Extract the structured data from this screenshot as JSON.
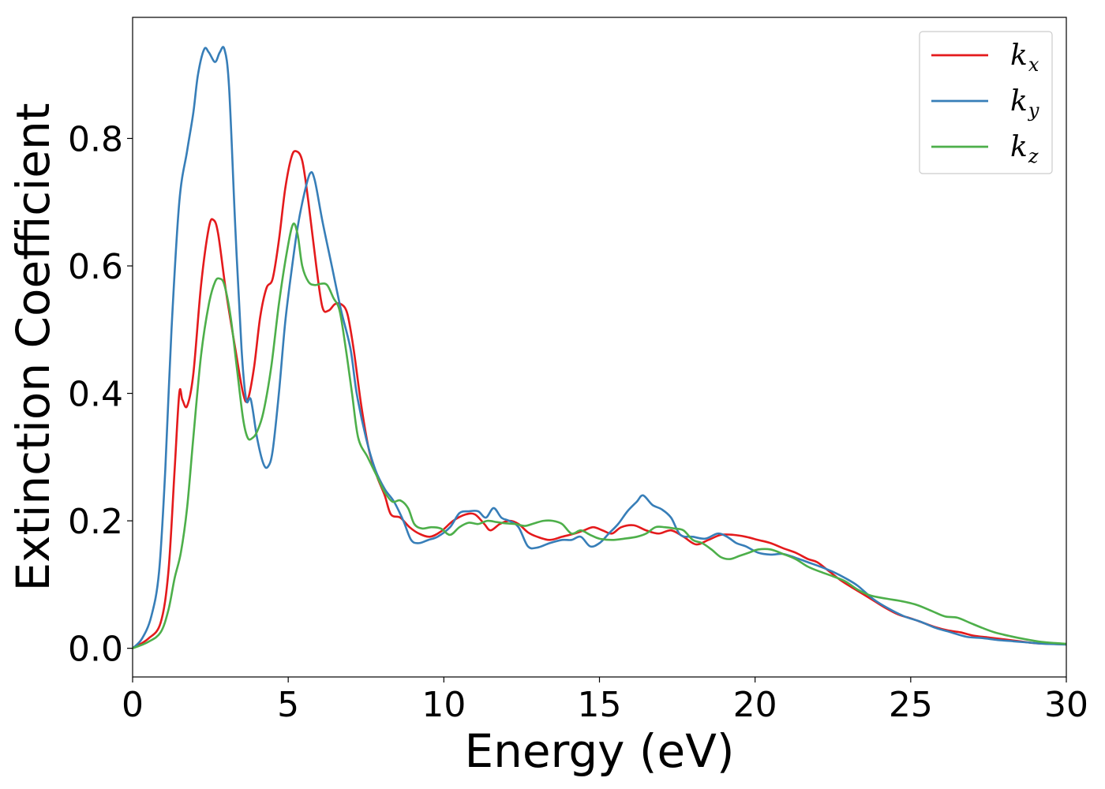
{
  "chart_data": {
    "type": "line",
    "title": "",
    "xlabel": "Energy (eV)",
    "ylabel": "Extinction Coefficient",
    "xlim": [
      0,
      30
    ],
    "ylim": [
      -0.045,
      0.99
    ],
    "xticks": [
      0,
      5,
      10,
      15,
      20,
      25,
      30
    ],
    "xtick_labels": [
      "0",
      "5",
      "10",
      "15",
      "20",
      "25",
      "30"
    ],
    "yticks": [
      0.0,
      0.2,
      0.4,
      0.6,
      0.8
    ],
    "ytick_labels": [
      "0.0",
      "0.2",
      "0.4",
      "0.6",
      "0.8"
    ],
    "grid": false,
    "legend_position": "top-right",
    "series": [
      {
        "name": "k",
        "subscript": "x",
        "color": "#e41a1c",
        "points": [
          [
            0,
            0.0
          ],
          [
            0.5,
            0.015
          ],
          [
            0.9,
            0.04
          ],
          [
            1.15,
            0.12
          ],
          [
            1.35,
            0.28
          ],
          [
            1.5,
            0.4
          ],
          [
            1.6,
            0.39
          ],
          [
            1.75,
            0.38
          ],
          [
            1.95,
            0.43
          ],
          [
            2.2,
            0.57
          ],
          [
            2.45,
            0.66
          ],
          [
            2.6,
            0.672
          ],
          [
            2.75,
            0.65
          ],
          [
            3.0,
            0.56
          ],
          [
            3.3,
            0.47
          ],
          [
            3.55,
            0.4
          ],
          [
            3.7,
            0.39
          ],
          [
            3.9,
            0.44
          ],
          [
            4.1,
            0.52
          ],
          [
            4.3,
            0.565
          ],
          [
            4.5,
            0.58
          ],
          [
            4.7,
            0.64
          ],
          [
            4.9,
            0.72
          ],
          [
            5.1,
            0.77
          ],
          [
            5.25,
            0.78
          ],
          [
            5.45,
            0.765
          ],
          [
            5.65,
            0.7
          ],
          [
            5.9,
            0.6
          ],
          [
            6.1,
            0.535
          ],
          [
            6.3,
            0.53
          ],
          [
            6.5,
            0.54
          ],
          [
            6.7,
            0.54
          ],
          [
            6.9,
            0.525
          ],
          [
            7.1,
            0.47
          ],
          [
            7.35,
            0.38
          ],
          [
            7.6,
            0.31
          ],
          [
            7.85,
            0.27
          ],
          [
            8.1,
            0.24
          ],
          [
            8.3,
            0.21
          ],
          [
            8.6,
            0.205
          ],
          [
            8.9,
            0.19
          ],
          [
            9.2,
            0.18
          ],
          [
            9.55,
            0.175
          ],
          [
            9.9,
            0.183
          ],
          [
            10.3,
            0.2
          ],
          [
            10.7,
            0.21
          ],
          [
            11.0,
            0.21
          ],
          [
            11.3,
            0.195
          ],
          [
            11.5,
            0.185
          ],
          [
            11.8,
            0.195
          ],
          [
            12.1,
            0.2
          ],
          [
            12.4,
            0.195
          ],
          [
            12.7,
            0.182
          ],
          [
            13.0,
            0.175
          ],
          [
            13.4,
            0.17
          ],
          [
            13.8,
            0.175
          ],
          [
            14.2,
            0.18
          ],
          [
            14.5,
            0.185
          ],
          [
            14.8,
            0.19
          ],
          [
            15.1,
            0.185
          ],
          [
            15.4,
            0.18
          ],
          [
            15.7,
            0.19
          ],
          [
            16.1,
            0.193
          ],
          [
            16.5,
            0.185
          ],
          [
            16.9,
            0.18
          ],
          [
            17.3,
            0.185
          ],
          [
            17.7,
            0.175
          ],
          [
            18.1,
            0.163
          ],
          [
            18.5,
            0.17
          ],
          [
            18.9,
            0.178
          ],
          [
            19.3,
            0.178
          ],
          [
            19.7,
            0.175
          ],
          [
            20.1,
            0.17
          ],
          [
            20.5,
            0.165
          ],
          [
            20.9,
            0.157
          ],
          [
            21.3,
            0.15
          ],
          [
            21.7,
            0.14
          ],
          [
            22.0,
            0.135
          ],
          [
            22.4,
            0.12
          ],
          [
            22.8,
            0.105
          ],
          [
            23.3,
            0.09
          ],
          [
            23.8,
            0.075
          ],
          [
            24.2,
            0.063
          ],
          [
            24.6,
            0.053
          ],
          [
            25.0,
            0.047
          ],
          [
            25.4,
            0.04
          ],
          [
            25.8,
            0.033
          ],
          [
            26.2,
            0.028
          ],
          [
            26.6,
            0.025
          ],
          [
            27.0,
            0.02
          ],
          [
            27.5,
            0.017
          ],
          [
            28.0,
            0.014
          ],
          [
            28.5,
            0.011
          ],
          [
            29.0,
            0.008
          ],
          [
            29.5,
            0.007
          ],
          [
            30.0,
            0.006
          ]
        ]
      },
      {
        "name": "k",
        "subscript": "y",
        "color": "#377eb8",
        "points": [
          [
            0,
            0.0
          ],
          [
            0.3,
            0.015
          ],
          [
            0.6,
            0.05
          ],
          [
            0.85,
            0.12
          ],
          [
            1.05,
            0.28
          ],
          [
            1.25,
            0.5
          ],
          [
            1.5,
            0.7
          ],
          [
            1.75,
            0.78
          ],
          [
            1.95,
            0.84
          ],
          [
            2.1,
            0.9
          ],
          [
            2.3,
            0.94
          ],
          [
            2.45,
            0.935
          ],
          [
            2.65,
            0.92
          ],
          [
            2.8,
            0.935
          ],
          [
            2.95,
            0.94
          ],
          [
            3.1,
            0.88
          ],
          [
            3.3,
            0.66
          ],
          [
            3.5,
            0.47
          ],
          [
            3.65,
            0.39
          ],
          [
            3.8,
            0.39
          ],
          [
            4.0,
            0.33
          ],
          [
            4.2,
            0.29
          ],
          [
            4.35,
            0.285
          ],
          [
            4.5,
            0.31
          ],
          [
            4.7,
            0.4
          ],
          [
            4.9,
            0.51
          ],
          [
            5.1,
            0.59
          ],
          [
            5.3,
            0.66
          ],
          [
            5.5,
            0.71
          ],
          [
            5.7,
            0.745
          ],
          [
            5.85,
            0.735
          ],
          [
            6.1,
            0.67
          ],
          [
            6.4,
            0.6
          ],
          [
            6.7,
            0.53
          ],
          [
            7.0,
            0.47
          ],
          [
            7.2,
            0.4
          ],
          [
            7.5,
            0.33
          ],
          [
            7.8,
            0.28
          ],
          [
            8.1,
            0.25
          ],
          [
            8.4,
            0.23
          ],
          [
            8.7,
            0.2
          ],
          [
            8.95,
            0.17
          ],
          [
            9.2,
            0.165
          ],
          [
            9.5,
            0.17
          ],
          [
            9.8,
            0.175
          ],
          [
            10.2,
            0.19
          ],
          [
            10.5,
            0.212
          ],
          [
            10.8,
            0.215
          ],
          [
            11.1,
            0.215
          ],
          [
            11.35,
            0.205
          ],
          [
            11.6,
            0.22
          ],
          [
            11.85,
            0.205
          ],
          [
            12.1,
            0.2
          ],
          [
            12.4,
            0.19
          ],
          [
            12.7,
            0.16
          ],
          [
            13.0,
            0.158
          ],
          [
            13.4,
            0.165
          ],
          [
            13.8,
            0.17
          ],
          [
            14.1,
            0.17
          ],
          [
            14.4,
            0.175
          ],
          [
            14.7,
            0.16
          ],
          [
            15.0,
            0.165
          ],
          [
            15.3,
            0.18
          ],
          [
            15.6,
            0.195
          ],
          [
            15.9,
            0.215
          ],
          [
            16.2,
            0.23
          ],
          [
            16.4,
            0.24
          ],
          [
            16.7,
            0.225
          ],
          [
            17.0,
            0.218
          ],
          [
            17.3,
            0.205
          ],
          [
            17.6,
            0.178
          ],
          [
            18.0,
            0.175
          ],
          [
            18.4,
            0.172
          ],
          [
            18.8,
            0.18
          ],
          [
            19.1,
            0.175
          ],
          [
            19.4,
            0.165
          ],
          [
            19.7,
            0.16
          ],
          [
            20.1,
            0.15
          ],
          [
            20.5,
            0.147
          ],
          [
            20.9,
            0.148
          ],
          [
            21.3,
            0.142
          ],
          [
            21.7,
            0.135
          ],
          [
            22.1,
            0.128
          ],
          [
            22.5,
            0.12
          ],
          [
            22.9,
            0.11
          ],
          [
            23.3,
            0.098
          ],
          [
            23.8,
            0.077
          ],
          [
            24.3,
            0.062
          ],
          [
            24.8,
            0.05
          ],
          [
            25.3,
            0.042
          ],
          [
            25.8,
            0.032
          ],
          [
            26.3,
            0.025
          ],
          [
            26.8,
            0.018
          ],
          [
            27.3,
            0.016
          ],
          [
            27.8,
            0.013
          ],
          [
            28.3,
            0.011
          ],
          [
            28.8,
            0.009
          ],
          [
            29.3,
            0.007
          ],
          [
            30.0,
            0.006
          ]
        ]
      },
      {
        "name": "k",
        "subscript": "z",
        "color": "#4daf4a",
        "points": [
          [
            0,
            0.0
          ],
          [
            0.5,
            0.01
          ],
          [
            0.9,
            0.025
          ],
          [
            1.15,
            0.06
          ],
          [
            1.35,
            0.11
          ],
          [
            1.55,
            0.15
          ],
          [
            1.75,
            0.22
          ],
          [
            1.95,
            0.33
          ],
          [
            2.2,
            0.46
          ],
          [
            2.45,
            0.54
          ],
          [
            2.65,
            0.575
          ],
          [
            2.8,
            0.58
          ],
          [
            2.95,
            0.57
          ],
          [
            3.15,
            0.52
          ],
          [
            3.35,
            0.44
          ],
          [
            3.55,
            0.36
          ],
          [
            3.7,
            0.33
          ],
          [
            3.85,
            0.33
          ],
          [
            4.0,
            0.34
          ],
          [
            4.2,
            0.37
          ],
          [
            4.45,
            0.44
          ],
          [
            4.7,
            0.54
          ],
          [
            4.95,
            0.62
          ],
          [
            5.15,
            0.665
          ],
          [
            5.3,
            0.65
          ],
          [
            5.45,
            0.6
          ],
          [
            5.65,
            0.575
          ],
          [
            5.85,
            0.57
          ],
          [
            6.05,
            0.572
          ],
          [
            6.25,
            0.57
          ],
          [
            6.45,
            0.55
          ],
          [
            6.65,
            0.53
          ],
          [
            6.85,
            0.47
          ],
          [
            7.05,
            0.4
          ],
          [
            7.25,
            0.33
          ],
          [
            7.55,
            0.3
          ],
          [
            7.85,
            0.27
          ],
          [
            8.1,
            0.245
          ],
          [
            8.35,
            0.23
          ],
          [
            8.6,
            0.232
          ],
          [
            8.85,
            0.22
          ],
          [
            9.05,
            0.195
          ],
          [
            9.3,
            0.188
          ],
          [
            9.6,
            0.19
          ],
          [
            9.9,
            0.188
          ],
          [
            10.2,
            0.178
          ],
          [
            10.5,
            0.19
          ],
          [
            10.8,
            0.197
          ],
          [
            11.1,
            0.195
          ],
          [
            11.4,
            0.2
          ],
          [
            11.7,
            0.198
          ],
          [
            12.0,
            0.196
          ],
          [
            12.3,
            0.195
          ],
          [
            12.6,
            0.192
          ],
          [
            12.9,
            0.196
          ],
          [
            13.2,
            0.2
          ],
          [
            13.5,
            0.2
          ],
          [
            13.8,
            0.195
          ],
          [
            14.1,
            0.18
          ],
          [
            14.4,
            0.185
          ],
          [
            14.7,
            0.178
          ],
          [
            15.0,
            0.172
          ],
          [
            15.4,
            0.17
          ],
          [
            15.8,
            0.172
          ],
          [
            16.2,
            0.175
          ],
          [
            16.5,
            0.18
          ],
          [
            16.8,
            0.19
          ],
          [
            17.1,
            0.19
          ],
          [
            17.4,
            0.188
          ],
          [
            17.7,
            0.185
          ],
          [
            18.0,
            0.17
          ],
          [
            18.3,
            0.165
          ],
          [
            18.6,
            0.155
          ],
          [
            18.9,
            0.143
          ],
          [
            19.2,
            0.14
          ],
          [
            19.5,
            0.145
          ],
          [
            19.8,
            0.15
          ],
          [
            20.1,
            0.155
          ],
          [
            20.5,
            0.155
          ],
          [
            20.9,
            0.148
          ],
          [
            21.3,
            0.14
          ],
          [
            21.7,
            0.128
          ],
          [
            22.1,
            0.12
          ],
          [
            22.5,
            0.113
          ],
          [
            22.9,
            0.105
          ],
          [
            23.3,
            0.092
          ],
          [
            23.7,
            0.083
          ],
          [
            24.2,
            0.078
          ],
          [
            24.7,
            0.074
          ],
          [
            25.2,
            0.068
          ],
          [
            25.7,
            0.058
          ],
          [
            26.1,
            0.05
          ],
          [
            26.5,
            0.048
          ],
          [
            26.9,
            0.04
          ],
          [
            27.3,
            0.032
          ],
          [
            27.7,
            0.025
          ],
          [
            28.2,
            0.019
          ],
          [
            28.7,
            0.014
          ],
          [
            29.2,
            0.01
          ],
          [
            29.7,
            0.008
          ],
          [
            30.0,
            0.007
          ]
        ]
      }
    ]
  }
}
